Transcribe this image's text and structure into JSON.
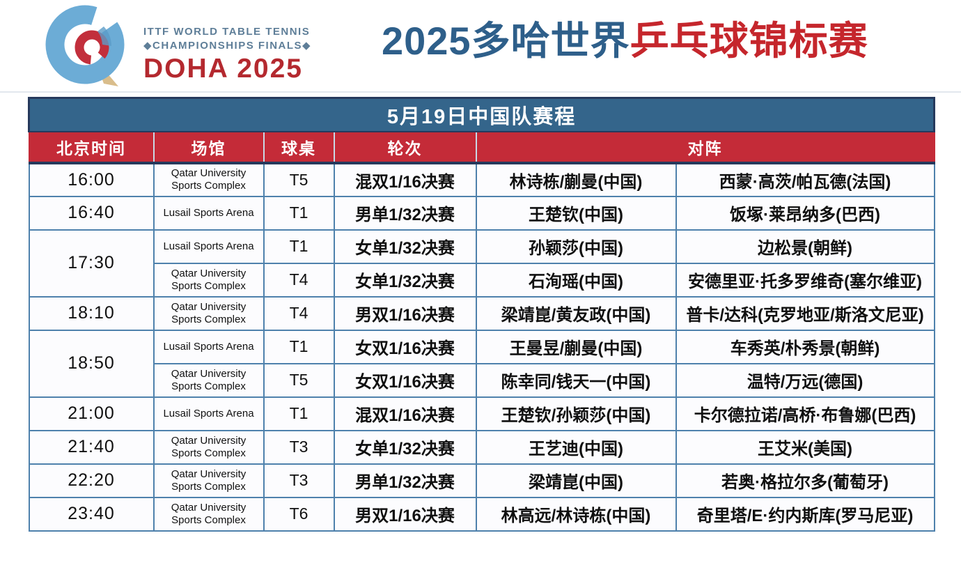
{
  "logo": {
    "line1": "ITTF WORLD TABLE TENNIS",
    "line2": "◆CHAMPIONSHIPS FINALS◆",
    "doha": "DOHA 2025"
  },
  "title": {
    "blue_part": "2025多哈世界",
    "red_part": "乒乓球锦标赛"
  },
  "table": {
    "banner": "5月19日中国队赛程",
    "headers": [
      "北京时间",
      "场馆",
      "球桌",
      "轮次",
      "对阵"
    ],
    "rows": [
      {
        "time": "16:00",
        "time_rowspan": 1,
        "venue": "Qatar University Sports Complex",
        "table_no": "T5",
        "round": "混双1/16决赛",
        "china": "林诗栋/蒯曼(中国)",
        "opponent": "西蒙·高茨/帕瓦德(法国)"
      },
      {
        "time": "16:40",
        "time_rowspan": 1,
        "venue": "Lusail Sports Arena",
        "table_no": "T1",
        "round": "男单1/32决赛",
        "china": "王楚钦(中国)",
        "opponent": "饭塚·莱昂纳多(巴西)"
      },
      {
        "time": "17:30",
        "time_rowspan": 2,
        "venue": "Lusail Sports Arena",
        "table_no": "T1",
        "round": "女单1/32决赛",
        "china": "孙颖莎(中国)",
        "opponent": "边松景(朝鲜)"
      },
      {
        "time": null,
        "time_rowspan": 0,
        "venue": "Qatar University Sports Complex",
        "table_no": "T4",
        "round": "女单1/32决赛",
        "china": "石洵瑶(中国)",
        "opponent": "安德里亚·托多罗维奇(塞尔维亚)"
      },
      {
        "time": "18:10",
        "time_rowspan": 1,
        "venue": "Qatar University Sports Complex",
        "table_no": "T4",
        "round": "男双1/16决赛",
        "china": "梁靖崑/黄友政(中国)",
        "opponent": "普卡/达科(克罗地亚/斯洛文尼亚)"
      },
      {
        "time": "18:50",
        "time_rowspan": 2,
        "venue": "Lusail Sports Arena",
        "table_no": "T1",
        "round": "女双1/16决赛",
        "china": "王曼昱/蒯曼(中国)",
        "opponent": "车秀英/朴秀景(朝鲜)"
      },
      {
        "time": null,
        "time_rowspan": 0,
        "venue": "Qatar University Sports Complex",
        "table_no": "T5",
        "round": "女双1/16决赛",
        "china": "陈幸同/钱天一(中国)",
        "opponent": "温特/万远(德国)"
      },
      {
        "time": "21:00",
        "time_rowspan": 1,
        "venue": "Lusail Sports Arena",
        "table_no": "T1",
        "round": "混双1/16决赛",
        "china": "王楚钦/孙颖莎(中国)",
        "opponent": "卡尔德拉诺/高桥·布鲁娜(巴西)"
      },
      {
        "time": "21:40",
        "time_rowspan": 1,
        "venue": "Qatar University Sports Complex",
        "table_no": "T3",
        "round": "女单1/32决赛",
        "china": "王艺迪(中国)",
        "opponent": "王艾米(美国)"
      },
      {
        "time": "22:20",
        "time_rowspan": 1,
        "venue": "Qatar University Sports Complex",
        "table_no": "T3",
        "round": "男单1/32决赛",
        "china": "梁靖崑(中国)",
        "opponent": "若奥·格拉尔多(葡萄牙)"
      },
      {
        "time": "23:40",
        "time_rowspan": 1,
        "venue": "Qatar University Sports Complex",
        "table_no": "T6",
        "round": "男双1/16决赛",
        "china": "林高远/林诗栋(中国)",
        "opponent": "奇里塔/E·约内斯库(罗马尼亚)"
      }
    ]
  },
  "colors": {
    "banner_blue": "#34658B",
    "header_red": "#C42B38",
    "border_blue": "#4E81AC",
    "navy": "#26395C",
    "title_blue": "#2E5F8A",
    "title_red": "#C5262C",
    "doha_red": "#B4292F",
    "logo_gray_blue": "#5E7E98",
    "cell_bg": "#FCFCFE"
  }
}
